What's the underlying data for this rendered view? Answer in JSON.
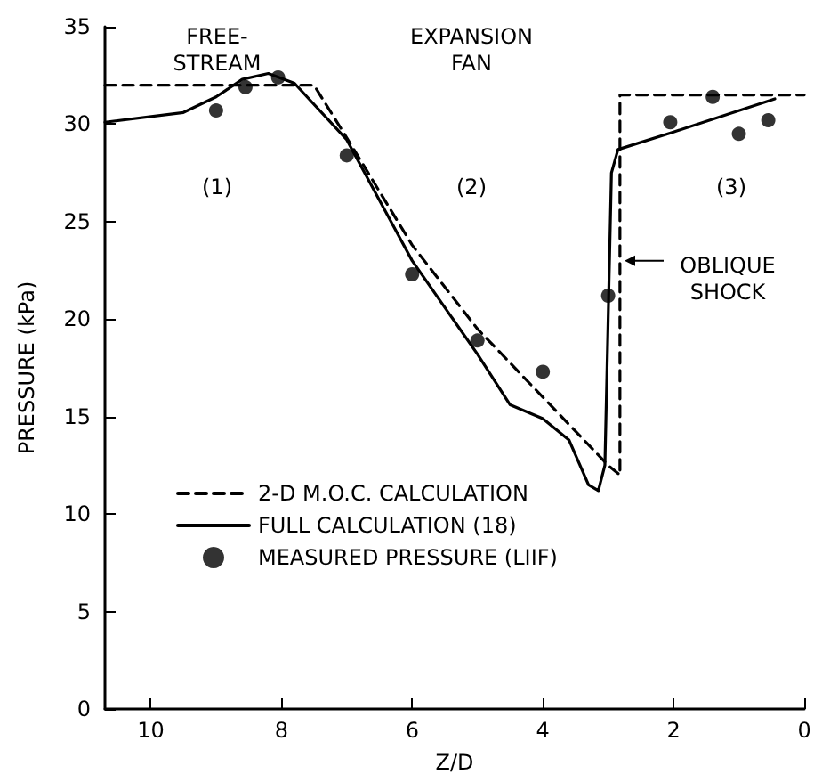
{
  "chart_data": {
    "type": "line",
    "xlabel": "Z/D",
    "ylabel": "PRESSURE (kPa)",
    "xlim": [
      10.7,
      0
    ],
    "xticks": [
      10,
      8,
      6,
      4,
      2,
      0
    ],
    "ylim": [
      0,
      35
    ],
    "yticks": [
      0,
      5,
      10,
      15,
      20,
      25,
      30,
      35
    ],
    "grid": false,
    "legend": "bottom left",
    "series": [
      {
        "name": "2-D M.O.C. CALCULATION",
        "line_style": "dashed",
        "marker": "none",
        "color": "#000000",
        "x": [
          10.7,
          7.5,
          7,
          6,
          5,
          4,
          3,
          2.82,
          2.82,
          0
        ],
        "values": [
          32,
          32,
          29.3,
          23.8,
          19.5,
          16,
          12.5,
          12,
          31.5,
          31.5
        ]
      },
      {
        "name": "FULL CALCULATION (18)",
        "line_style": "solid",
        "marker": "none",
        "color": "#000000",
        "x": [
          10.7,
          9.5,
          9,
          8.6,
          8.2,
          7.8,
          7,
          6,
          5,
          4.5,
          4,
          3.6,
          3.3,
          3.15,
          3.05,
          3,
          2.95,
          2.85,
          2,
          0.45
        ],
        "values": [
          30.1,
          30.6,
          31.4,
          32.3,
          32.6,
          32.1,
          29.2,
          23,
          18.2,
          15.6,
          14.9,
          13.8,
          11.5,
          11.2,
          12.5,
          20,
          27.5,
          28.7,
          29.6,
          31.3
        ]
      },
      {
        "name": "MEASURED PRESSURE (LIIF)",
        "type": "scatter",
        "marker": "circle",
        "color": "#000000",
        "x": [
          9,
          8.55,
          8.05,
          7,
          6,
          5,
          4,
          3,
          2.05,
          1.4,
          1,
          0.55
        ],
        "values": [
          30.7,
          31.9,
          32.4,
          28.4,
          22.3,
          18.9,
          17.3,
          21.2,
          30.1,
          31.4,
          29.5,
          30.2
        ]
      }
    ],
    "annotations": [
      "FREE-\nSTREAM",
      "EXPANSION\nFAN",
      "(1)",
      "(2)",
      "(3)",
      {
        "text": "OBLIQUE\nSHOCK",
        "x": 2.75,
        "y": 23
      }
    ]
  }
}
